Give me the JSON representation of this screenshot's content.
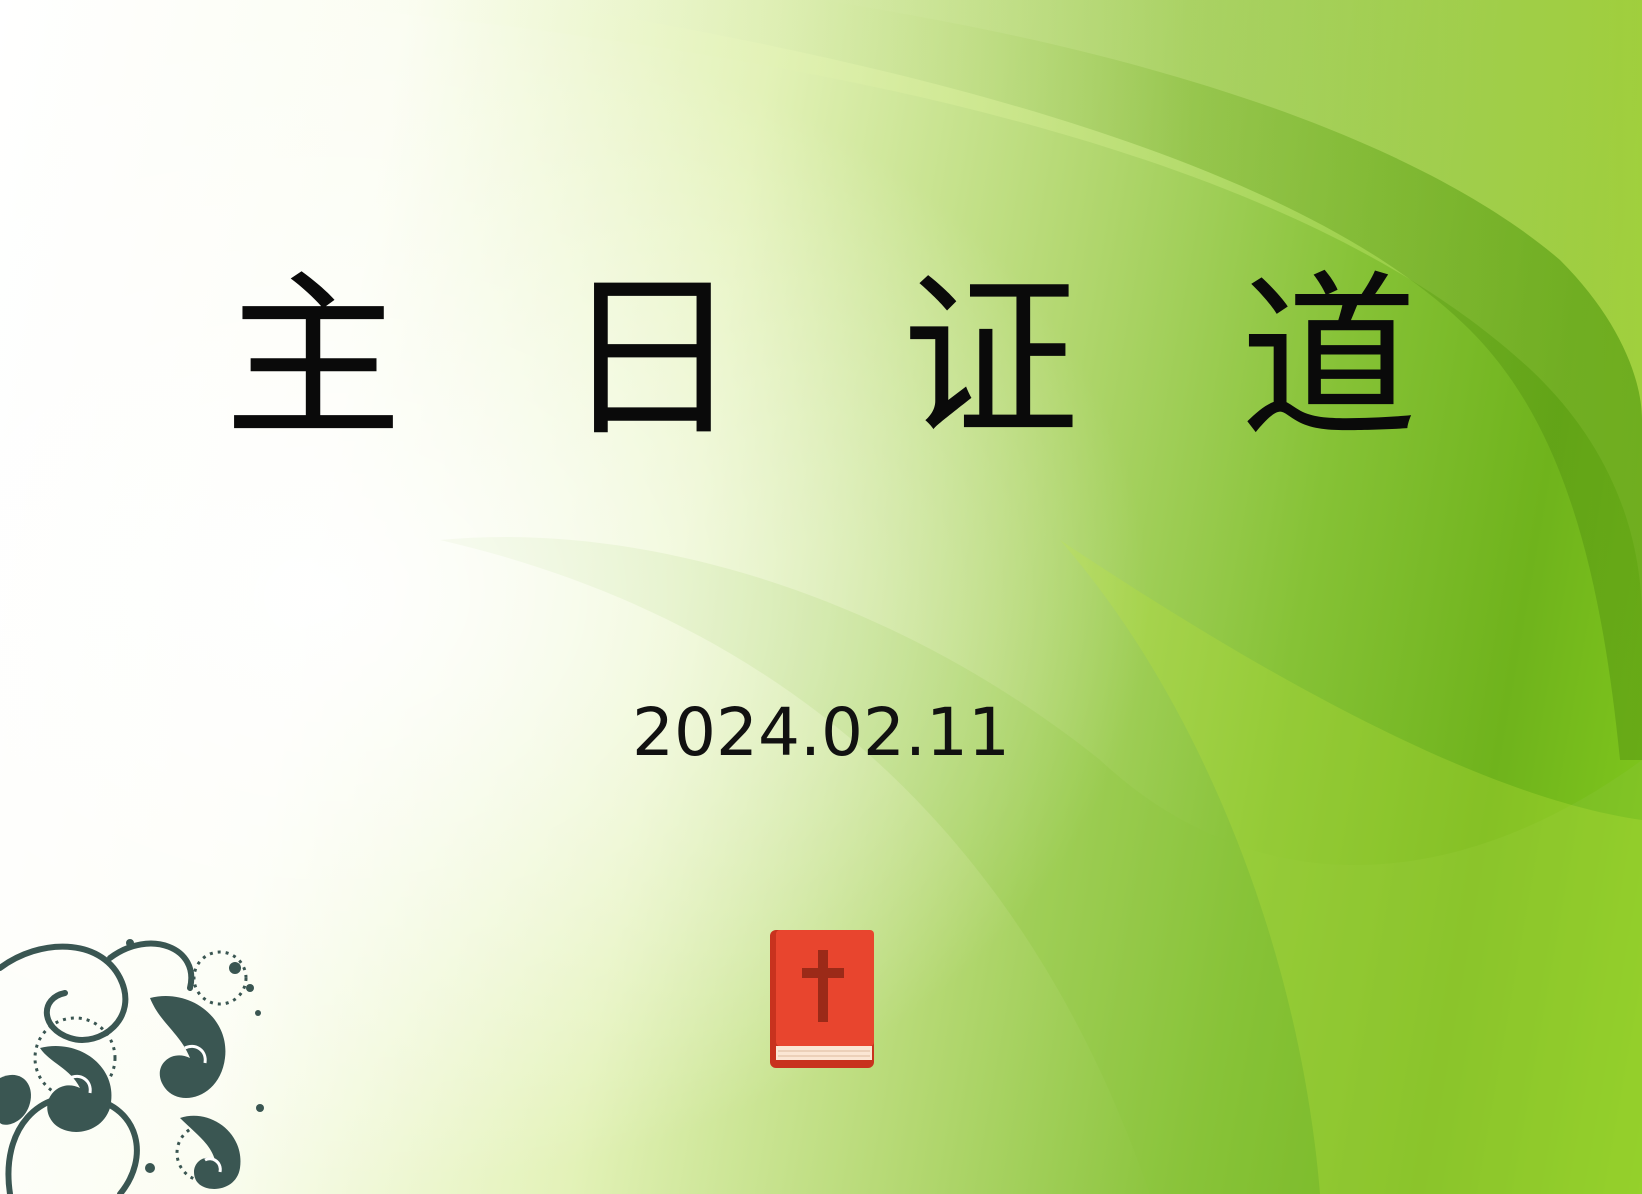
{
  "slide": {
    "title": "主 日 证 道",
    "date": "2024.02.11"
  },
  "icons": {
    "bible": "bible-cross-icon",
    "ornament": "paisley-ornament-icon"
  },
  "colors": {
    "background_light": "#ffffff",
    "background_green": "#6fb31c",
    "title_text": "#0a0a0a",
    "bible_cover": "#e8452e",
    "bible_cross": "#9b2a18",
    "bible_pages": "#fbe6d4",
    "ornament": "#3a5652"
  }
}
